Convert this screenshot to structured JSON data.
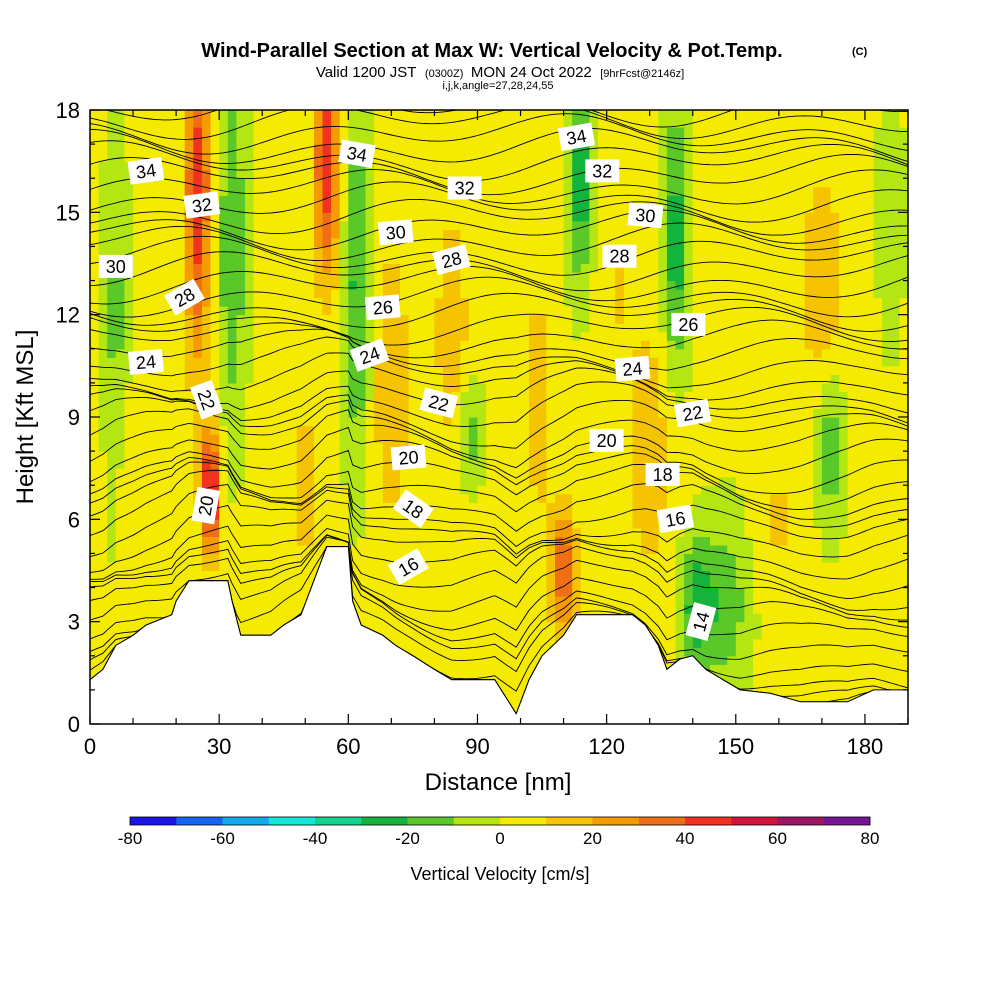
{
  "header": {
    "title": "Wind-Parallel Section at Max W: Vertical Velocity & Pot.Temp.",
    "copyright": "(C)",
    "valid_prefix": "Valid 1200 JST",
    "valid_utc": "(0300Z)",
    "valid_date": "MON 24 Oct 2022",
    "forecast": "[9hrFcst@2146z]",
    "indices": "i,j,k,angle=27,28,24,55"
  },
  "chart_data": {
    "type": "heatmap",
    "xlabel": "Distance [nm]",
    "ylabel": "Height [Kft MSL]",
    "xlim": [
      0,
      190
    ],
    "ylim": [
      0,
      18
    ],
    "x_ticks": [
      0,
      30,
      60,
      90,
      120,
      150,
      180
    ],
    "y_ticks": [
      0,
      3,
      6,
      9,
      12,
      15,
      18
    ],
    "colorbar": {
      "label": "Vertical Velocity [cm/s]",
      "min": -80,
      "max": 80,
      "step": 10,
      "tick_values": [
        -80,
        -60,
        -40,
        -20,
        0,
        20,
        40,
        60,
        80
      ],
      "colors": [
        "#1a14e6",
        "#1466f0",
        "#14a8f0",
        "#14e6dc",
        "#14d28c",
        "#14b43c",
        "#5ac828",
        "#b4e614",
        "#f5eb00",
        "#f5c300",
        "#f59b00",
        "#f06e14",
        "#f0321e",
        "#d2143c",
        "#a01464",
        "#781496"
      ]
    },
    "terrain": [
      [
        0,
        1.3
      ],
      [
        3,
        1.6
      ],
      [
        6,
        2.3
      ],
      [
        10,
        2.6
      ],
      [
        13,
        2.9
      ],
      [
        19,
        3.2
      ],
      [
        20,
        3.6
      ],
      [
        23,
        4.2
      ],
      [
        32,
        4.2
      ],
      [
        33,
        3.6
      ],
      [
        35,
        2.6
      ],
      [
        42,
        2.6
      ],
      [
        45,
        2.9
      ],
      [
        49,
        3.2
      ],
      [
        52,
        4.2
      ],
      [
        55,
        5.2
      ],
      [
        60,
        5.2
      ],
      [
        61,
        3.6
      ],
      [
        63,
        2.9
      ],
      [
        68,
        2.6
      ],
      [
        71,
        2.3
      ],
      [
        75,
        2.0
      ],
      [
        80,
        1.6
      ],
      [
        84,
        1.3
      ],
      [
        94,
        1.3
      ],
      [
        97,
        0.7
      ],
      [
        99,
        0.3
      ],
      [
        102,
        1.3
      ],
      [
        105,
        2.0
      ],
      [
        110,
        2.6
      ],
      [
        113,
        3.2
      ],
      [
        120,
        3.2
      ],
      [
        126,
        3.2
      ],
      [
        129,
        2.9
      ],
      [
        132,
        2.3
      ],
      [
        134,
        1.6
      ],
      [
        137,
        1.9
      ],
      [
        140,
        2.0
      ],
      [
        143,
        1.6
      ],
      [
        147,
        1.3
      ],
      [
        151,
        1.0
      ],
      [
        158,
        0.9
      ],
      [
        165,
        0.65
      ],
      [
        176,
        0.65
      ],
      [
        182,
        1.0
      ],
      [
        190,
        1.0
      ]
    ],
    "theta_labels": [
      {
        "value": 34,
        "x": 13,
        "y": 16.2,
        "angle": -8
      },
      {
        "value": 32,
        "x": 26,
        "y": 15.2,
        "angle": -8
      },
      {
        "value": 30,
        "x": 6,
        "y": 13.4,
        "angle": 0
      },
      {
        "value": 28,
        "x": 22,
        "y": 12.5,
        "angle": -30
      },
      {
        "value": 24,
        "x": 13,
        "y": 10.6,
        "angle": -5
      },
      {
        "value": 22,
        "x": 27,
        "y": 9.5,
        "angle": 70
      },
      {
        "value": 20,
        "x": 27,
        "y": 6.4,
        "angle": -80
      },
      {
        "value": 34,
        "x": 62,
        "y": 16.7,
        "angle": 10
      },
      {
        "value": 32,
        "x": 87,
        "y": 15.7,
        "angle": 0
      },
      {
        "value": 30,
        "x": 71,
        "y": 14.4,
        "angle": -5
      },
      {
        "value": 28,
        "x": 84,
        "y": 13.6,
        "angle": -15
      },
      {
        "value": 26,
        "x": 68,
        "y": 12.2,
        "angle": -5
      },
      {
        "value": 24,
        "x": 65,
        "y": 10.8,
        "angle": -20
      },
      {
        "value": 22,
        "x": 81,
        "y": 9.4,
        "angle": 15
      },
      {
        "value": 20,
        "x": 74,
        "y": 7.8,
        "angle": -5
      },
      {
        "value": 18,
        "x": 75,
        "y": 6.3,
        "angle": 35
      },
      {
        "value": 16,
        "x": 74,
        "y": 4.6,
        "angle": -30
      },
      {
        "value": 34,
        "x": 113,
        "y": 17.2,
        "angle": -10
      },
      {
        "value": 32,
        "x": 119,
        "y": 16.2,
        "angle": 0
      },
      {
        "value": 30,
        "x": 129,
        "y": 14.9,
        "angle": 5
      },
      {
        "value": 28,
        "x": 123,
        "y": 13.7,
        "angle": 0
      },
      {
        "value": 26,
        "x": 139,
        "y": 11.7,
        "angle": 0
      },
      {
        "value": 24,
        "x": 126,
        "y": 10.4,
        "angle": -5
      },
      {
        "value": 22,
        "x": 140,
        "y": 9.1,
        "angle": -10
      },
      {
        "value": 20,
        "x": 120,
        "y": 8.3,
        "angle": 0
      },
      {
        "value": 18,
        "x": 133,
        "y": 7.3,
        "angle": 0
      },
      {
        "value": 16,
        "x": 136,
        "y": 6.0,
        "angle": -10
      },
      {
        "value": 14,
        "x": 142,
        "y": 3.0,
        "angle": -75
      }
    ]
  }
}
